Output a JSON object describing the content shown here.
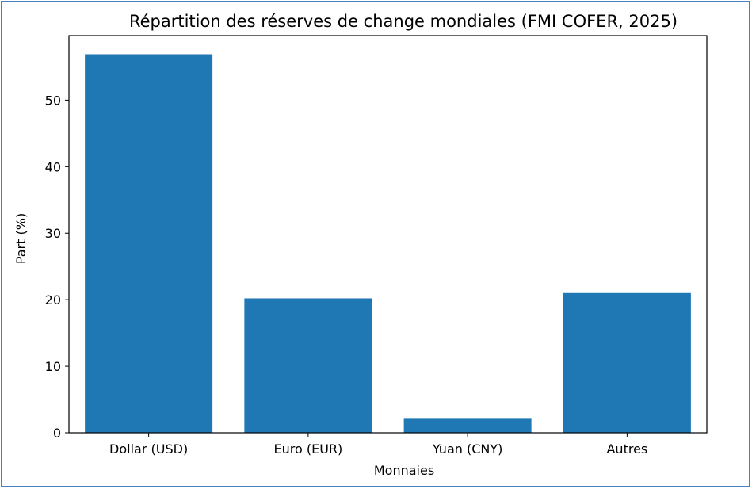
{
  "chart_data": {
    "type": "bar",
    "title": "Répartition des réserves de change mondiales (FMI COFER, 2025)",
    "xlabel": "Monnaies",
    "ylabel": "Part (%)",
    "categories": [
      "Dollar (USD)",
      "Euro (EUR)",
      "Yuan (CNY)",
      "Autres"
    ],
    "values": [
      56.9,
      20.2,
      2.1,
      21.0
    ],
    "ylim": [
      0,
      59.7
    ],
    "yticks": [
      0,
      10,
      20,
      30,
      40,
      50
    ],
    "bar_color": "#1f77b4",
    "grid": false,
    "legend": "none"
  }
}
